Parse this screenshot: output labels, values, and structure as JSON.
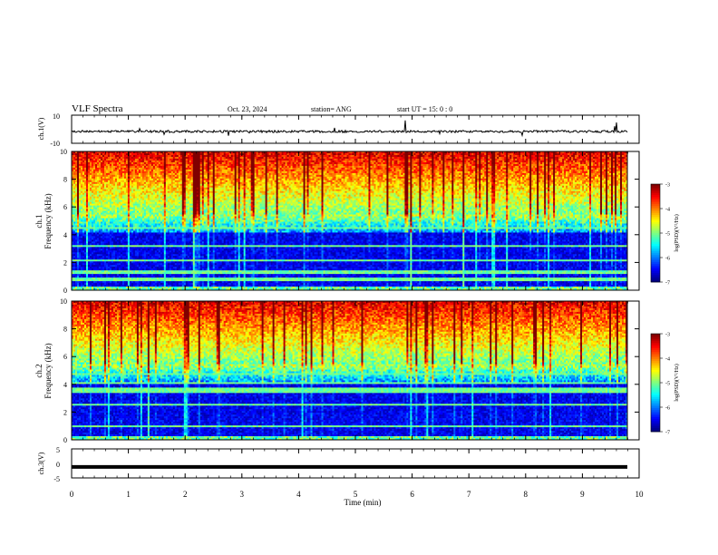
{
  "header": {
    "title": "VLF Spectra",
    "date": "Oct. 23, 2024",
    "station": "station= ANG",
    "start": "start  UT =   15: 0  : 0"
  },
  "chart_data": [
    {
      "type": "line",
      "name": "ch.1 waveform",
      "ylabel": "ch.1(V)",
      "ylim": [
        -10,
        10
      ],
      "yticks": [
        "10",
        "-10"
      ],
      "xlim": [
        0,
        10
      ],
      "baseline": -1.6
    },
    {
      "type": "heatmap",
      "name": "ch.1 spectrogram",
      "ylabel": "ch.1\nFrequency (kHz)",
      "ylabel_line1": "ch.1",
      "ylabel_line2": "Frequency (kHz)",
      "ylim": [
        0,
        10
      ],
      "yticks": [
        "0",
        "2",
        "4",
        "6",
        "8",
        "10"
      ],
      "xlim": [
        0,
        9.8
      ],
      "colorbar": {
        "label": "log(PSD)(V²/Hz)",
        "range": [
          -7,
          -3
        ],
        "ticks": [
          "-3",
          "-4",
          "-5",
          "-6",
          "-7"
        ]
      }
    },
    {
      "type": "heatmap",
      "name": "ch.2 spectrogram",
      "ylabel_line1": "ch.2",
      "ylabel_line2": "Frequency (kHz)",
      "ylim": [
        0,
        10
      ],
      "yticks": [
        "0",
        "2",
        "4",
        "6",
        "8",
        "10"
      ],
      "xlim": [
        0,
        9.8
      ],
      "colorbar": {
        "label": "log(PSD)(V²/Hz)",
        "range": [
          -7,
          -3
        ],
        "ticks": [
          "-3",
          "-4",
          "-5",
          "-6",
          "-7"
        ]
      }
    },
    {
      "type": "line",
      "name": "ch.3 waveform",
      "ylabel": "ch.3(V)",
      "ylim": [
        -5,
        5
      ],
      "yticks": [
        "5",
        "0",
        "-5"
      ],
      "xlim": [
        0,
        10
      ],
      "baseline": -1.2
    }
  ],
  "xaxis": {
    "label": "Time (min)",
    "ticks": [
      "0",
      "1",
      "2",
      "3",
      "4",
      "5",
      "6",
      "7",
      "8",
      "9",
      "10"
    ]
  }
}
